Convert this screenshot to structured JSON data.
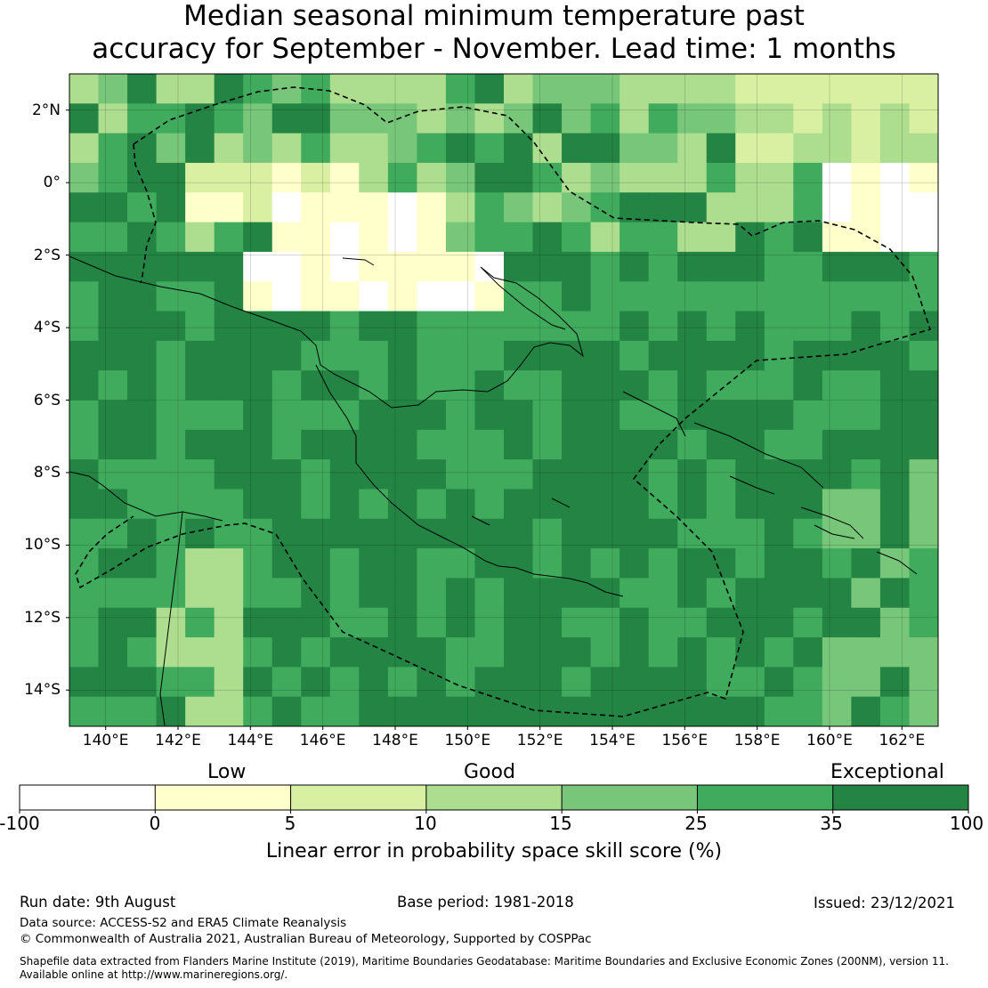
{
  "title_line1": "Median seasonal minimum temperature past",
  "title_line2": "accuracy for September - November. Lead time: 1 months",
  "map": {
    "lon_labels": [
      "140°E",
      "142°E",
      "144°E",
      "146°E",
      "148°E",
      "150°E",
      "152°E",
      "154°E",
      "156°E",
      "158°E",
      "160°E",
      "162°E"
    ],
    "lon_values": [
      140,
      142,
      144,
      146,
      148,
      150,
      152,
      154,
      156,
      158,
      160,
      162
    ],
    "lat_labels": [
      "2°N",
      "0°",
      "2°S",
      "4°S",
      "6°S",
      "8°S",
      "10°S",
      "12°S",
      "14°S"
    ],
    "lat_values": [
      2,
      0,
      -2,
      -4,
      -6,
      -8,
      -10,
      -12,
      -14
    ],
    "lon_range": [
      139,
      163
    ],
    "lat_range": [
      -15,
      3
    ]
  },
  "colorbar": {
    "category_labels": [
      "Low",
      "Good",
      "Exceptional"
    ],
    "tick_labels": [
      "-100",
      "0",
      "5",
      "10",
      "15",
      "25",
      "35",
      "100"
    ],
    "colors": [
      "#ffffff",
      "#ffffcc",
      "#d9f0a3",
      "#addd8e",
      "#78c679",
      "#41ab5d",
      "#238443"
    ],
    "xlabel": "Linear error in probability space skill score (%)"
  },
  "footer": {
    "run_date": "Run date: 9th August",
    "base_period": "Base period: 1981-2018",
    "issued": "Issued: 23/12/2021",
    "data_source": "Data source: ACCESS-S2 and ERA5 Climate Reanalysis",
    "copyright": "© Commonwealth of Australia 2021, Australian Bureau of Meteorology, Supported by COSPPac",
    "shapefile_line1": "Shapefile data extracted from Flanders Marine Institute (2019), Maritime Boundaries Geodatabase: Maritime Boundaries and Exclusive Economic Zones (200NM), version 11.",
    "shapefile_line2": "Available online at http://www.marineregions.org/."
  }
}
